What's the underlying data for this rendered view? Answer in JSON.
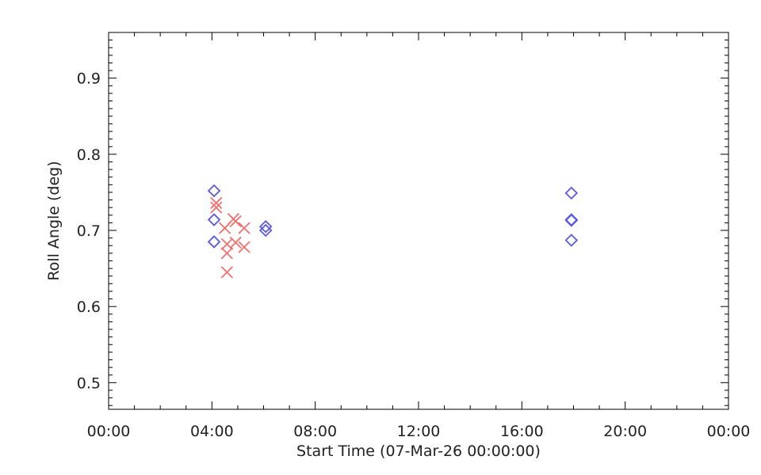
{
  "chart_data": {
    "type": "scatter",
    "title": "",
    "xlabel": "Start Time (07-Mar-26 00:00:00)",
    "ylabel": "Roll Angle (deg)",
    "x_unit": "time of day",
    "xlim": [
      "00:00",
      "24:00"
    ],
    "ylim": [
      0.465,
      0.96
    ],
    "x_ticks": [
      "00:00",
      "04:00",
      "08:00",
      "12:00",
      "16:00",
      "20:00",
      "00:00"
    ],
    "y_ticks": [
      "0.5",
      "0.6",
      "0.7",
      "0.8",
      "0.9"
    ],
    "grid": false,
    "series": [
      {
        "marker": "diamond",
        "color": "#5a5ae0",
        "points": [
          [
            "04:05",
            0.752
          ],
          [
            "04:05",
            0.714
          ],
          [
            "04:05",
            0.685
          ],
          [
            "06:05",
            0.705
          ],
          [
            "06:05",
            0.7
          ],
          [
            "17:55",
            0.749
          ],
          [
            "17:55",
            0.714
          ],
          [
            "17:55",
            0.713
          ],
          [
            "17:55",
            0.687
          ]
        ]
      },
      {
        "marker": "x",
        "color": "#f07070",
        "points": [
          [
            "04:10",
            0.736
          ],
          [
            "04:10",
            0.73
          ],
          [
            "04:30",
            0.703
          ],
          [
            "04:35",
            0.682
          ],
          [
            "04:35",
            0.67
          ],
          [
            "04:35",
            0.645
          ],
          [
            "04:50",
            0.715
          ],
          [
            "04:55",
            0.712
          ],
          [
            "04:55",
            0.684
          ],
          [
            "05:15",
            0.703
          ],
          [
            "05:15",
            0.678
          ]
        ]
      }
    ]
  }
}
